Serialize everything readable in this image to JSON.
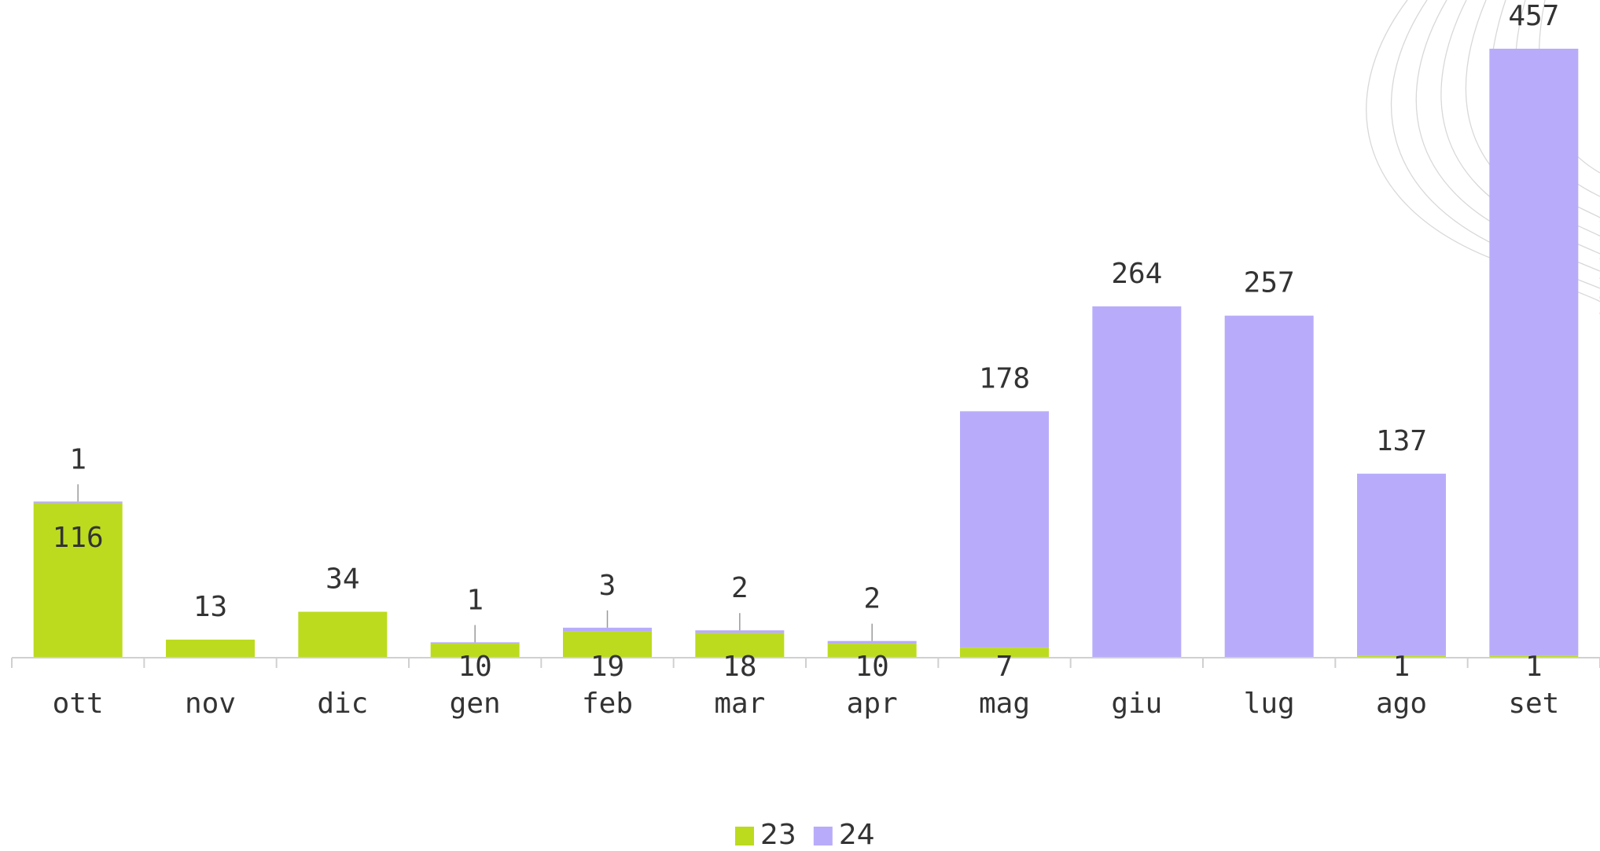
{
  "chart_data": {
    "type": "stacked-bar",
    "categories": [
      "ott",
      "nov",
      "dic",
      "gen",
      "feb",
      "mar",
      "apr",
      "mag",
      "giu",
      "lug",
      "ago",
      "set"
    ],
    "series": [
      {
        "name": "23",
        "color": "#bcdb1e",
        "values": [
          116,
          13,
          34,
          10,
          19,
          18,
          10,
          7,
          null,
          null,
          1,
          1
        ]
      },
      {
        "name": "24",
        "color": "#b8acfa",
        "values": [
          1,
          null,
          null,
          1,
          3,
          2,
          2,
          178,
          264,
          257,
          137,
          457
        ]
      }
    ],
    "legend": "bottom"
  }
}
